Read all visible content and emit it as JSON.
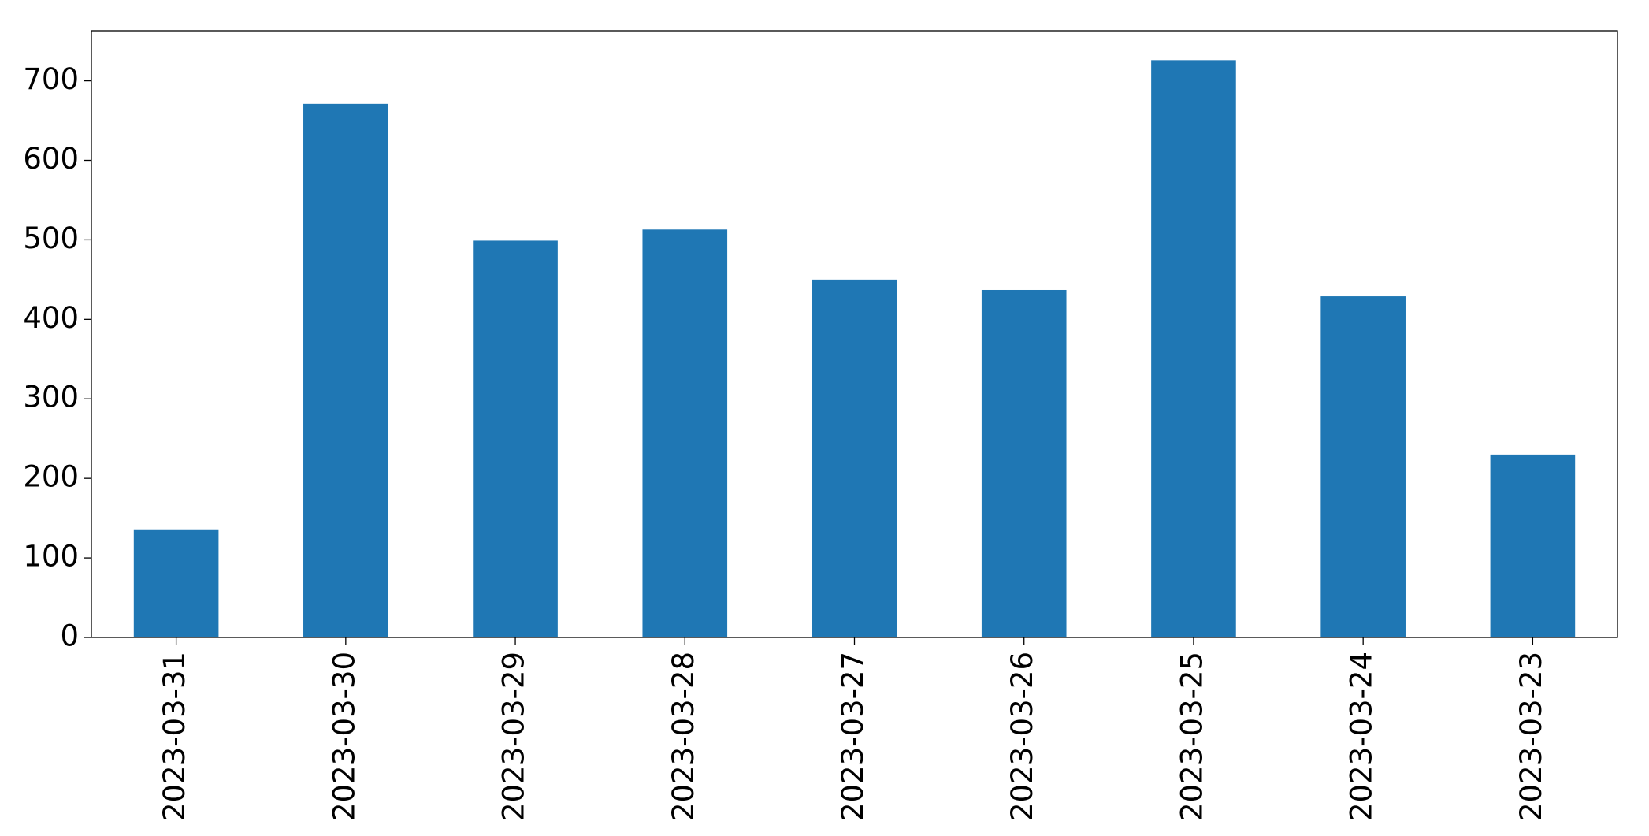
{
  "chart_data": {
    "type": "bar",
    "categories": [
      "2023-03-31",
      "2023-03-30",
      "2023-03-29",
      "2023-03-28",
      "2023-03-27",
      "2023-03-26",
      "2023-03-25",
      "2023-03-24",
      "2023-03-23"
    ],
    "values": [
      135,
      671,
      499,
      513,
      450,
      437,
      726,
      429,
      230
    ],
    "color": "#1f77b4",
    "ylim": [
      0,
      763
    ],
    "yticks": [
      0,
      100,
      200,
      300,
      400,
      500,
      600,
      700
    ]
  }
}
